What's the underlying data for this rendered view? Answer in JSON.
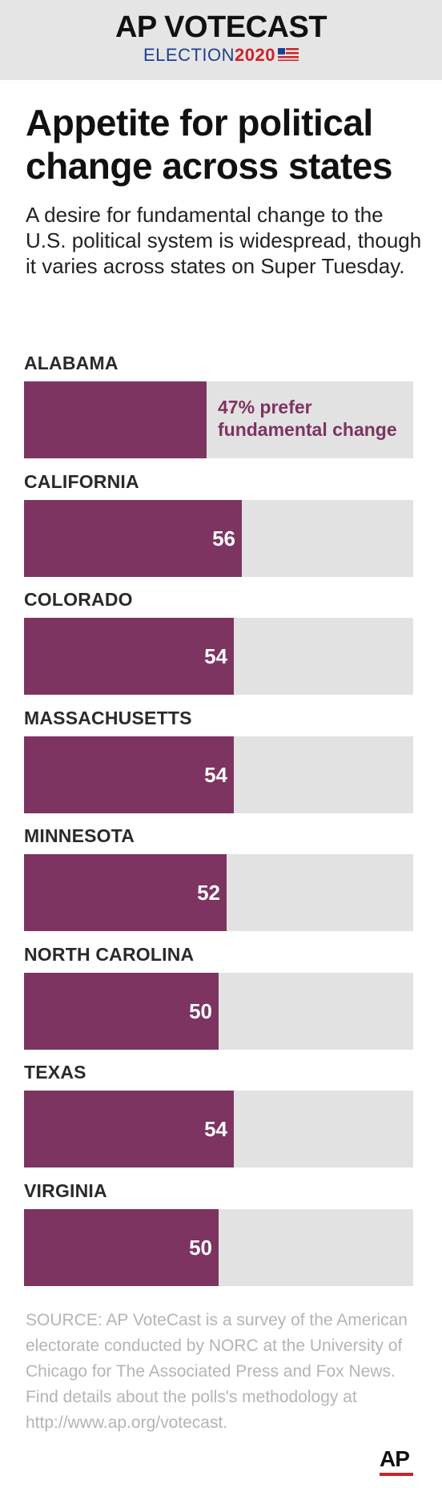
{
  "header": {
    "brand_title": "AP VOTECAST",
    "brand_election": "ELECTION",
    "brand_year": "2020"
  },
  "headline": "Appetite for political change across states",
  "subhead": "A desire for fundamental change to the U.S. political system is widespread, though it varies across states on Super Tuesday.",
  "chart_data": {
    "type": "bar",
    "orientation": "horizontal",
    "categories": [
      "ALABAMA",
      "CALIFORNIA",
      "COLORADO",
      "MASSACHUSETTS",
      "MINNESOTA",
      "NORTH CAROLINA",
      "TEXAS",
      "VIRGINIA"
    ],
    "values": [
      47,
      56,
      54,
      54,
      52,
      50,
      54,
      50
    ],
    "value_labels": [
      "47% prefer fundamental change",
      "56",
      "54",
      "54",
      "52",
      "50",
      "54",
      "50"
    ],
    "xlim": [
      0,
      100
    ],
    "unit": "percent",
    "grid": false,
    "colors": {
      "bar": "#7d3461",
      "track": "#e2e2e2"
    }
  },
  "source": "SOURCE: AP VoteCast is a survey of the American electorate conducted by NORC at the University of Chicago for The Associated Press and Fox News. Find details about the polls's methodology at http://www.ap.org/votecast.",
  "logo_text": "AP"
}
